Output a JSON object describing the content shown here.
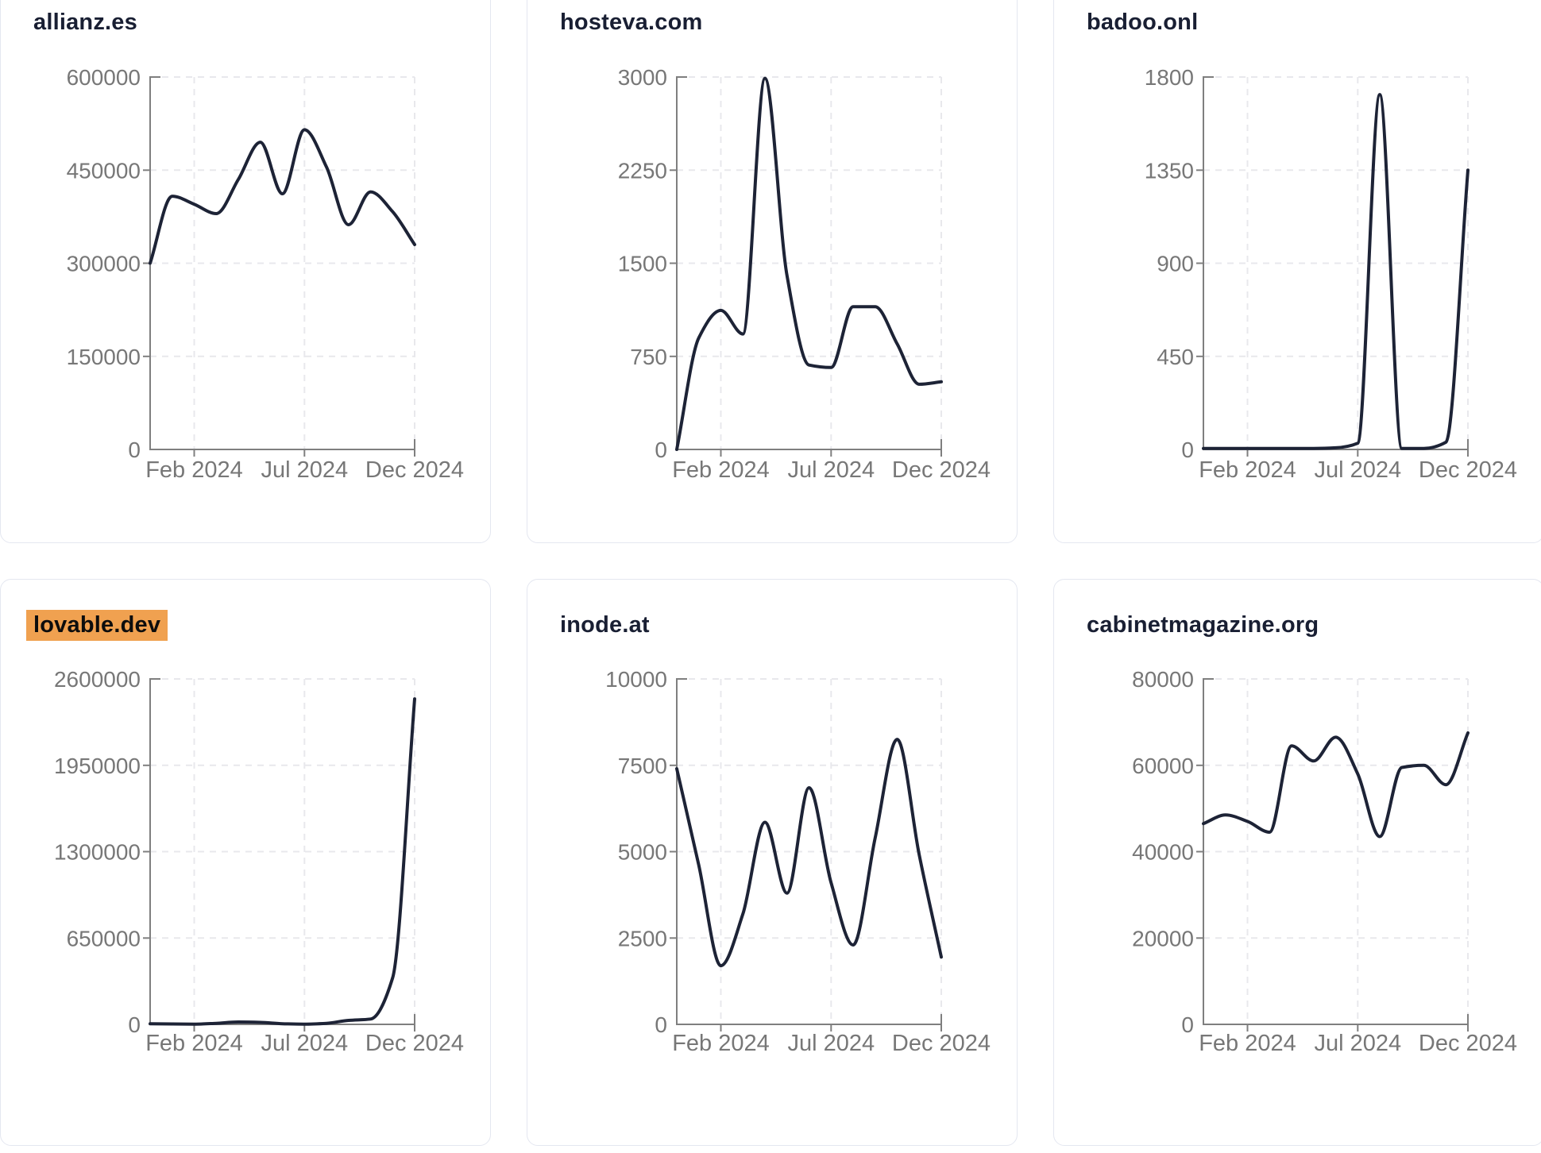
{
  "style": {
    "background": "#ffffff",
    "card_border": "#e4e7f0",
    "title_color": "#191f33",
    "line_color": "#1d2336",
    "axis_color": "#7f7f7f",
    "tick_label_color": "#777777",
    "grid_color": "#e8e8ec",
    "highlight_bg": "#f0a150"
  },
  "x_axis_tick_labels": [
    "Feb 2024",
    "Jul 2024",
    "Dec 2024"
  ],
  "chart_data": [
    {
      "type": "line",
      "title": "allianz.es",
      "highlighted": false,
      "x_months": [
        "Dec 2023",
        "Jan 2024",
        "Feb 2024",
        "Mar 2024",
        "Apr 2024",
        "May 2024",
        "Jun 2024",
        "Jul 2024",
        "Aug 2024",
        "Sep 2024",
        "Oct 2024",
        "Nov 2024",
        "Dec 2024"
      ],
      "values": [
        300000,
        408000,
        395000,
        380000,
        435000,
        495000,
        412000,
        515000,
        455000,
        362000,
        415000,
        383000,
        330000
      ],
      "ylim": [
        0,
        600000
      ],
      "y_ticks": [
        0,
        150000,
        300000,
        450000,
        600000
      ],
      "x_tick_labels": [
        "Feb 2024",
        "Jul 2024",
        "Dec 2024"
      ],
      "x_tick_month_indices": [
        2,
        7,
        12
      ],
      "grid": "dashed",
      "legend": false
    },
    {
      "type": "line",
      "title": "hosteva.com",
      "highlighted": false,
      "x_months": [
        "Dec 2023",
        "Jan 2024",
        "Feb 2024",
        "Mar 2024",
        "Apr 2024",
        "May 2024",
        "Jun 2024",
        "Jul 2024",
        "Aug 2024",
        "Sep 2024",
        "Oct 2024",
        "Nov 2024",
        "Dec 2024"
      ],
      "values": [
        0,
        900,
        1120,
        930,
        2990,
        1400,
        680,
        660,
        1150,
        1150,
        850,
        525,
        545
      ],
      "ylim": [
        0,
        3000
      ],
      "y_ticks": [
        0,
        750,
        1500,
        2250,
        3000
      ],
      "x_tick_labels": [
        "Feb 2024",
        "Jul 2024",
        "Dec 2024"
      ],
      "x_tick_month_indices": [
        2,
        7,
        12
      ],
      "grid": "dashed",
      "legend": false
    },
    {
      "type": "line",
      "title": "badoo.onl",
      "highlighted": false,
      "x_months": [
        "Dec 2023",
        "Jan 2024",
        "Feb 2024",
        "Mar 2024",
        "Apr 2024",
        "May 2024",
        "Jun 2024",
        "Jul 2024",
        "Aug 2024",
        "Sep 2024",
        "Oct 2024",
        "Nov 2024",
        "Dec 2024"
      ],
      "values": [
        5,
        5,
        5,
        5,
        5,
        5,
        8,
        30,
        1715,
        5,
        5,
        35,
        1350
      ],
      "ylim": [
        0,
        1800
      ],
      "y_ticks": [
        0,
        450,
        900,
        1350,
        1800
      ],
      "x_tick_labels": [
        "Feb 2024",
        "Jul 2024",
        "Dec 2024"
      ],
      "x_tick_month_indices": [
        2,
        7,
        12
      ],
      "grid": "dashed",
      "legend": false
    },
    {
      "type": "line",
      "title": "lovable.dev",
      "highlighted": true,
      "x_months": [
        "Dec 2023",
        "Jan 2024",
        "Feb 2024",
        "Mar 2024",
        "Apr 2024",
        "May 2024",
        "Jun 2024",
        "Jul 2024",
        "Aug 2024",
        "Sep 2024",
        "Oct 2024",
        "Nov 2024",
        "Dec 2024"
      ],
      "values": [
        5000,
        3000,
        2000,
        8000,
        18000,
        15000,
        5000,
        2000,
        8000,
        30000,
        40000,
        350000,
        2450000
      ],
      "ylim": [
        0,
        2600000
      ],
      "y_ticks": [
        0,
        650000,
        1300000,
        1950000,
        2600000
      ],
      "x_tick_labels": [
        "Feb 2024",
        "Jul 2024",
        "Dec 2024"
      ],
      "x_tick_month_indices": [
        2,
        7,
        12
      ],
      "grid": "dashed",
      "legend": false
    },
    {
      "type": "line",
      "title": "inode.at",
      "highlighted": false,
      "x_months": [
        "Dec 2023",
        "Jan 2024",
        "Feb 2024",
        "Mar 2024",
        "Apr 2024",
        "May 2024",
        "Jun 2024",
        "Jul 2024",
        "Aug 2024",
        "Sep 2024",
        "Oct 2024",
        "Nov 2024",
        "Dec 2024"
      ],
      "values": [
        7400,
        4600,
        1700,
        3200,
        5850,
        3800,
        6850,
        4100,
        2300,
        5400,
        8250,
        4900,
        1950
      ],
      "ylim": [
        0,
        10000
      ],
      "y_ticks": [
        0,
        2500,
        5000,
        7500,
        10000
      ],
      "x_tick_labels": [
        "Feb 2024",
        "Jul 2024",
        "Dec 2024"
      ],
      "x_tick_month_indices": [
        2,
        7,
        12
      ],
      "grid": "dashed",
      "legend": false
    },
    {
      "type": "line",
      "title": "cabinetmagazine.org",
      "highlighted": false,
      "x_months": [
        "Dec 2023",
        "Jan 2024",
        "Feb 2024",
        "Mar 2024",
        "Apr 2024",
        "May 2024",
        "Jun 2024",
        "Jul 2024",
        "Aug 2024",
        "Sep 2024",
        "Oct 2024",
        "Nov 2024",
        "Dec 2024"
      ],
      "values": [
        46500,
        48500,
        47000,
        44500,
        64500,
        61000,
        66500,
        58000,
        43500,
        59500,
        60000,
        55500,
        67500
      ],
      "ylim": [
        0,
        80000
      ],
      "y_ticks": [
        0,
        20000,
        40000,
        60000,
        80000
      ],
      "x_tick_labels": [
        "Feb 2024",
        "Jul 2024",
        "Dec 2024"
      ],
      "x_tick_month_indices": [
        2,
        7,
        12
      ],
      "grid": "dashed",
      "legend": false
    }
  ]
}
